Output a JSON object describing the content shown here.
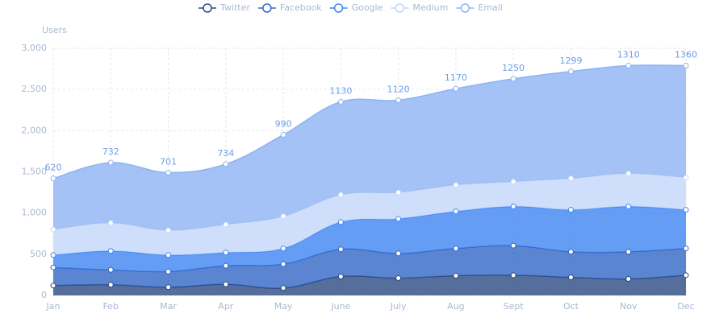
{
  "chart_data": {
    "type": "stacked_area",
    "y_label": "Users",
    "categories": [
      "Jan",
      "Feb",
      "Mar",
      "Apr",
      "May",
      "June",
      "July",
      "Aug",
      "Sept",
      "Oct",
      "Nov",
      "Dec"
    ],
    "series": [
      {
        "name": "Twitter",
        "color": "#2a4a82",
        "values": [
          120,
          130,
          100,
          135,
          90,
          230,
          210,
          240,
          245,
          220,
          200,
          245
        ]
      },
      {
        "name": "Facebook",
        "color": "#3266c4",
        "values": [
          220,
          180,
          190,
          225,
          290,
          330,
          300,
          330,
          360,
          310,
          330,
          325
        ]
      },
      {
        "name": "Google",
        "color": "#3f85f3",
        "values": [
          150,
          230,
          200,
          160,
          190,
          330,
          420,
          450,
          475,
          510,
          550,
          470
        ]
      },
      {
        "name": "Medium",
        "color": "#c3d7fa",
        "values": [
          310,
          340,
          300,
          340,
          390,
          330,
          320,
          320,
          300,
          380,
          400,
          390
        ]
      },
      {
        "name": "Email",
        "color": "#8db3f2",
        "values": [
          620,
          732,
          701,
          734,
          990,
          1130,
          1120,
          1170,
          1250,
          1299,
          1310,
          1360
        ],
        "show_value_labels": true
      }
    ],
    "ylim": [
      0,
      3000
    ],
    "yticks": [
      0,
      500,
      {
        "value": 1000,
        "label": "1,000"
      },
      {
        "value": 1500,
        "label": "1,500"
      },
      {
        "value": 2000,
        "label": "2,000"
      },
      {
        "value": 2500,
        "label": "2,500"
      },
      {
        "value": 3000,
        "label": "3,000"
      }
    ],
    "grid": true,
    "legend": "top"
  }
}
